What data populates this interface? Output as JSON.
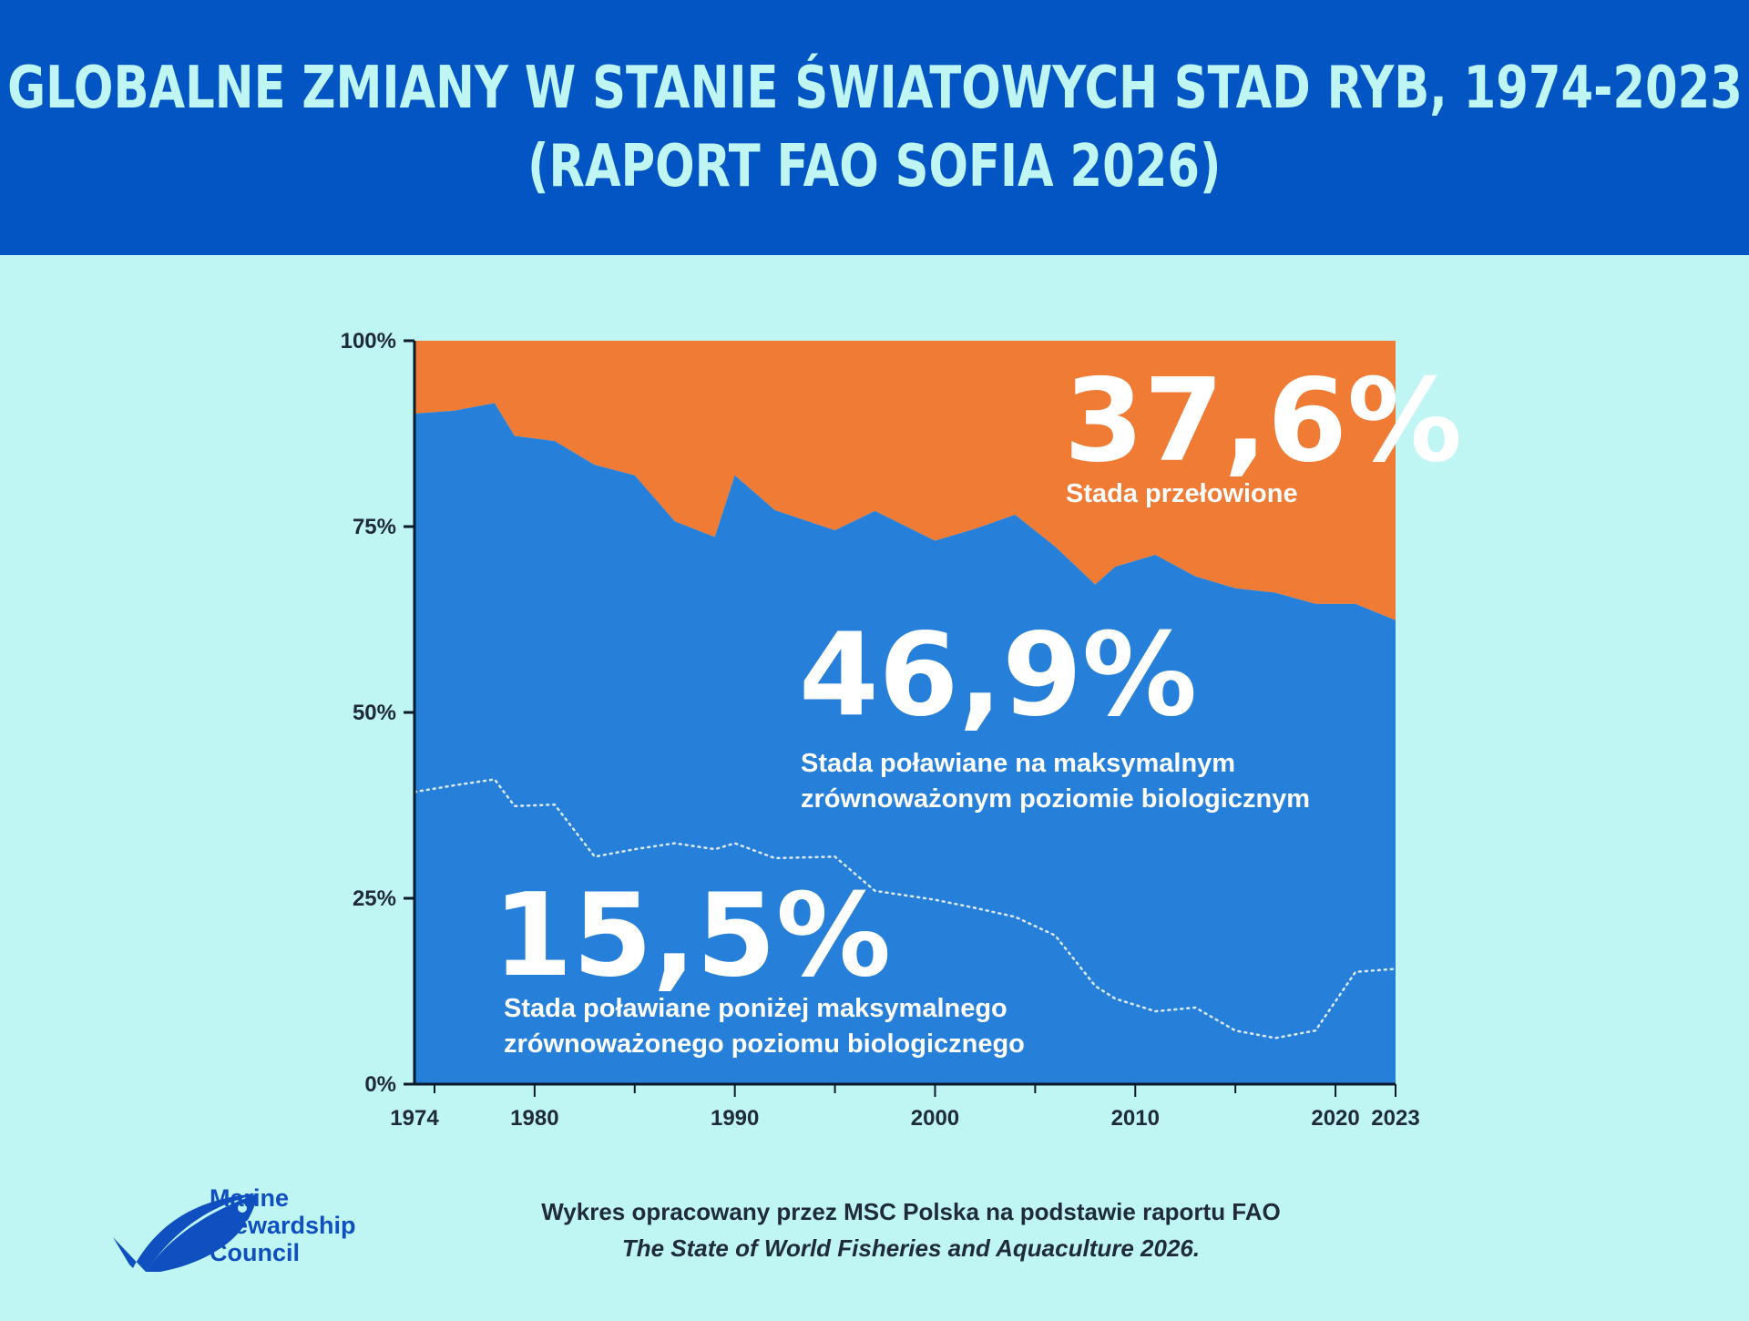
{
  "header": {
    "title_line1": "GLOBALNE ZMIANY W STANIE ŚWIATOWYCH STAD RYB, 1974-2023",
    "title_line2": "(RAPORT FAO SOFIA 2026)"
  },
  "colors": {
    "header_bg": "#0455c4",
    "page_bg": "#bff5f3",
    "overfished": "#f07b35",
    "maximally_fished": "#2680d9",
    "text_dark": "#1f2a3a"
  },
  "chart_data": {
    "type": "area",
    "x": [
      1974,
      1976,
      1978,
      1979,
      1981,
      1983,
      1985,
      1987,
      1989,
      1990,
      1992,
      1995,
      1997,
      2000,
      2002,
      2004,
      2006,
      2008,
      2009,
      2011,
      2013,
      2015,
      2017,
      2019,
      2021,
      2023
    ],
    "series": [
      {
        "name": "Stada poławiane poniżej maksymalnego zrównoważonego poziomu biologicznego",
        "values": [
          39.3,
          40.2,
          41.0,
          37.4,
          37.6,
          30.6,
          31.6,
          32.4,
          31.6,
          32.4,
          30.4,
          30.6,
          26.0,
          24.8,
          23.7,
          22.5,
          20.0,
          13.2,
          11.5,
          9.8,
          10.3,
          7.2,
          6.2,
          7.2,
          15.1,
          15.5
        ]
      },
      {
        "name": "Stada poławiane na maksymalnym zrównoważonym poziomie biologicznym",
        "values": [
          50.9,
          50.4,
          50.6,
          49.8,
          48.9,
          52.7,
          50.3,
          43.3,
          42.0,
          49.5,
          46.8,
          43.9,
          51.1,
          48.3,
          51.0,
          54.1,
          52.3,
          54.0,
          58.1,
          61.4,
          58.0,
          59.5,
          59.9,
          57.4,
          49.5,
          46.9
        ]
      },
      {
        "name": "Stada przełowione",
        "values": [
          9.8,
          9.4,
          8.4,
          12.8,
          13.5,
          16.7,
          18.1,
          24.3,
          26.4,
          18.1,
          22.8,
          25.5,
          22.9,
          26.9,
          25.3,
          23.4,
          27.7,
          32.8,
          30.4,
          28.8,
          31.7,
          33.3,
          33.9,
          35.4,
          35.4,
          37.6
        ]
      }
    ],
    "annotations": [
      {
        "value": "37,6%",
        "label_lines": [
          "Stada przełowione"
        ]
      },
      {
        "value": "46,9%",
        "label_lines": [
          "Stada poławiane na maksymalnym",
          "zrównoważonym poziomie biologicznym"
        ]
      },
      {
        "value": "15,5%",
        "label_lines": [
          "Stada poławiane poniżej maksymalnego",
          "zrównoważonego poziomu biologicznego"
        ]
      }
    ],
    "y_ticks": [
      "0%",
      "25%",
      "50%",
      "75%",
      "100%"
    ],
    "x_ticks": [
      1974,
      1980,
      1990,
      2000,
      2010,
      2020,
      2023
    ],
    "xlim": [
      1974,
      2023
    ],
    "ylim": [
      0,
      100
    ],
    "stacked": true,
    "legend": "inline annotations",
    "grid": false
  },
  "footer": {
    "line1": "Wykres opracowany przez MSC Polska na podstawie raportu FAO",
    "line2": "The State of World Fisheries and Aquaculture 2026."
  },
  "logo": {
    "line1": "Marine",
    "line2": "Stewardship",
    "line3": "Council",
    "icon": "msc-fish-check-icon"
  }
}
